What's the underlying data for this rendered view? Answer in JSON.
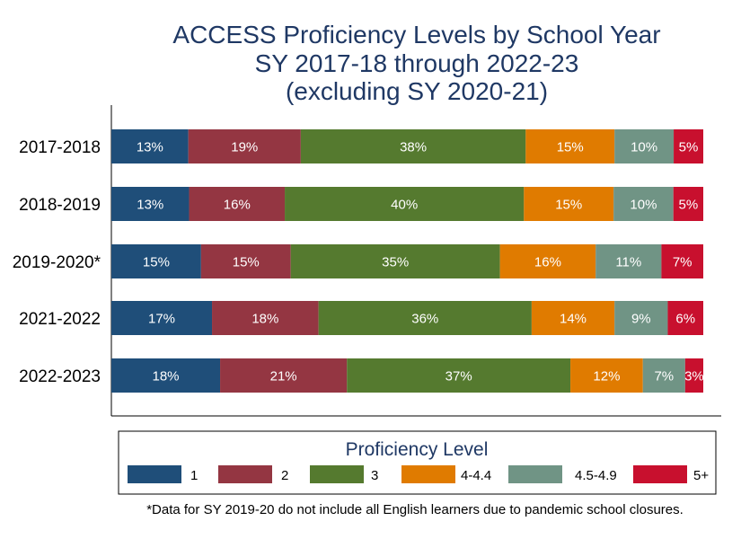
{
  "chart_data": {
    "type": "bar",
    "orientation": "horizontal",
    "stacked": true,
    "title_lines": [
      "ACCESS Proficiency Levels by School Year",
      "SY 2017-18 through 2022-23",
      "(excluding SY 2020-21)"
    ],
    "categories": [
      "2017-2018",
      "2018-2019",
      "2019-2020*",
      "2021-2022",
      "2022-2023"
    ],
    "series": [
      {
        "name": "1",
        "color": "#1f4e79",
        "values": [
          13,
          13,
          15,
          17,
          18
        ],
        "labels": [
          "13%",
          "13%",
          "15%",
          "17%",
          "18%"
        ]
      },
      {
        "name": "2",
        "color": "#943642",
        "values": [
          19,
          16,
          15,
          18,
          21
        ],
        "labels": [
          "19%",
          "16%",
          "15%",
          "18%",
          "21%"
        ]
      },
      {
        "name": "3",
        "color": "#557a2f",
        "values": [
          38,
          40,
          35,
          36,
          37
        ],
        "labels": [
          "38%",
          "40%",
          "35%",
          "36%",
          "37%"
        ]
      },
      {
        "name": "4-4.4",
        "color": "#e07b00",
        "values": [
          15,
          15,
          16,
          14,
          12
        ],
        "labels": [
          "15%",
          "15%",
          "16%",
          "14%",
          "12%"
        ]
      },
      {
        "name": "4.5-4.9",
        "color": "#709485",
        "values": [
          10,
          10,
          11,
          9,
          7
        ],
        "labels": [
          "10%",
          "10%",
          "11%",
          "9%",
          "7%"
        ]
      },
      {
        "name": "5+",
        "color": "#c8102e",
        "values": [
          5,
          5,
          7,
          6,
          3
        ],
        "labels": [
          "5%",
          "5%",
          "7%",
          "6%",
          "3%"
        ]
      }
    ],
    "legend": {
      "title": "Proficiency Level",
      "placement": "bottom"
    },
    "grid": false,
    "footnote": "*Data for SY 2019-20 do not include all English learners due to pandemic school closures."
  }
}
